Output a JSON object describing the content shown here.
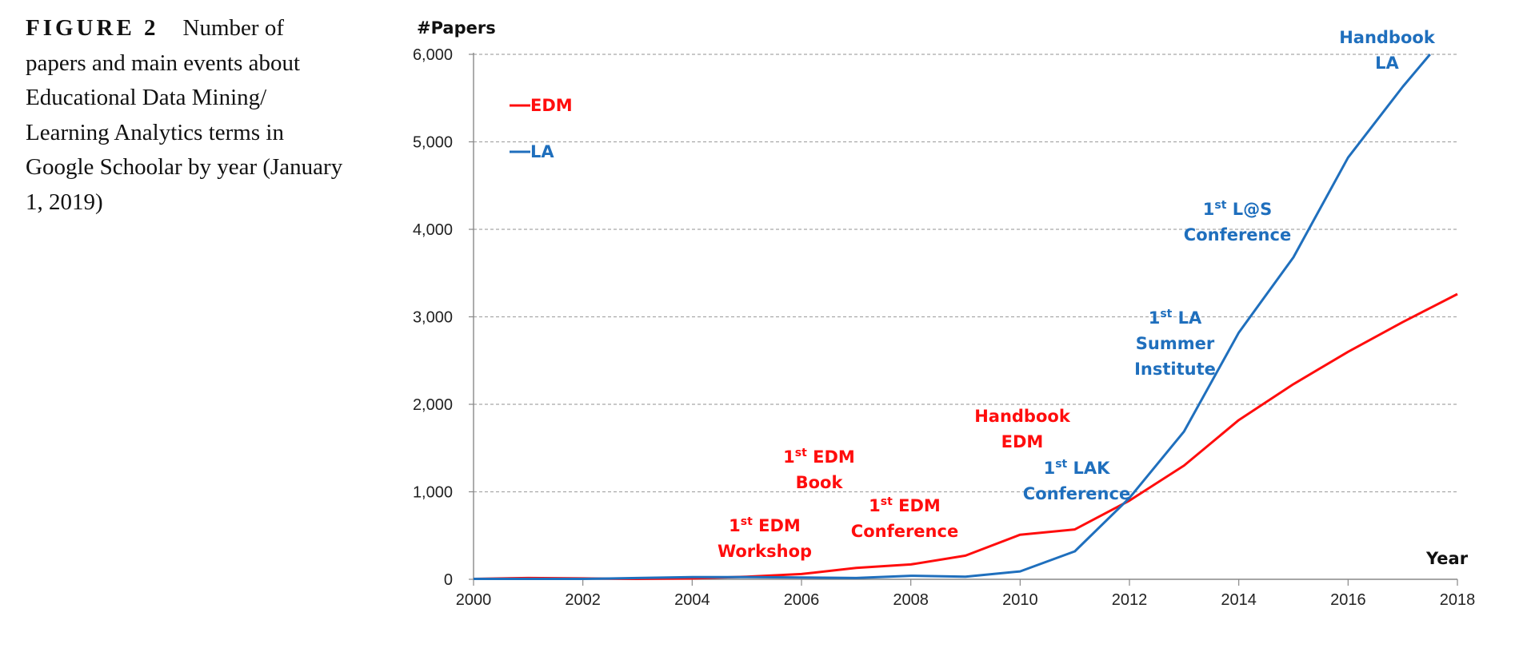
{
  "caption": {
    "label": "FIGURE 2",
    "text": "Number of papers and main events about Educational Data Mining/ Learning Analytics terms in Google Schoolar by year (January 1, 2019)"
  },
  "chart_data": {
    "type": "line",
    "ylabel": "#Papers",
    "xlabel": "Year",
    "xlim": [
      2000,
      2018
    ],
    "ylim": [
      0,
      6000
    ],
    "x_ticks": [
      "2000",
      "2002",
      "2004",
      "2006",
      "2008",
      "2010",
      "2012",
      "2014",
      "2016",
      "2018"
    ],
    "y_ticks": [
      "0",
      "1,000",
      "2,000",
      "3,000",
      "4,000",
      "5,000",
      "6,000"
    ],
    "grid": "horizontal dashed",
    "legend_position": "top-left",
    "colors": {
      "EDM": "#ff0d0d",
      "LA": "#1f6fbd"
    },
    "series": [
      {
        "name": "EDM",
        "color": "#ff0d0d",
        "x": [
          2000,
          2001,
          2002,
          2003,
          2004,
          2005,
          2006,
          2007,
          2008,
          2009,
          2010,
          2011,
          2012,
          2013,
          2014,
          2015,
          2016,
          2017,
          2018
        ],
        "values": [
          5,
          15,
          10,
          5,
          10,
          30,
          60,
          130,
          170,
          270,
          510,
          570,
          900,
          1300,
          1820,
          2230,
          2600,
          2940,
          3260
        ]
      },
      {
        "name": "LA",
        "color": "#1f6fbd",
        "x": [
          2000,
          2001,
          2002,
          2003,
          2004,
          2005,
          2006,
          2007,
          2008,
          2009,
          2010,
          2011,
          2012,
          2013,
          2014,
          2015,
          2016,
          2017,
          2017.5
        ],
        "values": [
          5,
          5,
          5,
          15,
          25,
          25,
          20,
          15,
          40,
          30,
          90,
          320,
          930,
          1690,
          2820,
          3680,
          4820,
          5630,
          6000
        ]
      }
    ],
    "annotations": [
      {
        "series": "EDM",
        "lines": [
          "1st EDM",
          "Workshop"
        ]
      },
      {
        "series": "EDM",
        "lines": [
          "1st EDM",
          "Book"
        ]
      },
      {
        "series": "EDM",
        "lines": [
          "1st EDM",
          "Conference"
        ]
      },
      {
        "series": "EDM",
        "lines": [
          "Handbook",
          "EDM"
        ]
      },
      {
        "series": "LA",
        "lines": [
          "1st LAK",
          "Conference"
        ]
      },
      {
        "series": "LA",
        "lines": [
          "1st LA",
          "Summer",
          "Institute"
        ]
      },
      {
        "series": "LA",
        "lines": [
          "1st L@S",
          "Conference"
        ]
      },
      {
        "series": "LA",
        "lines": [
          "Handbook",
          "LA"
        ]
      }
    ]
  }
}
